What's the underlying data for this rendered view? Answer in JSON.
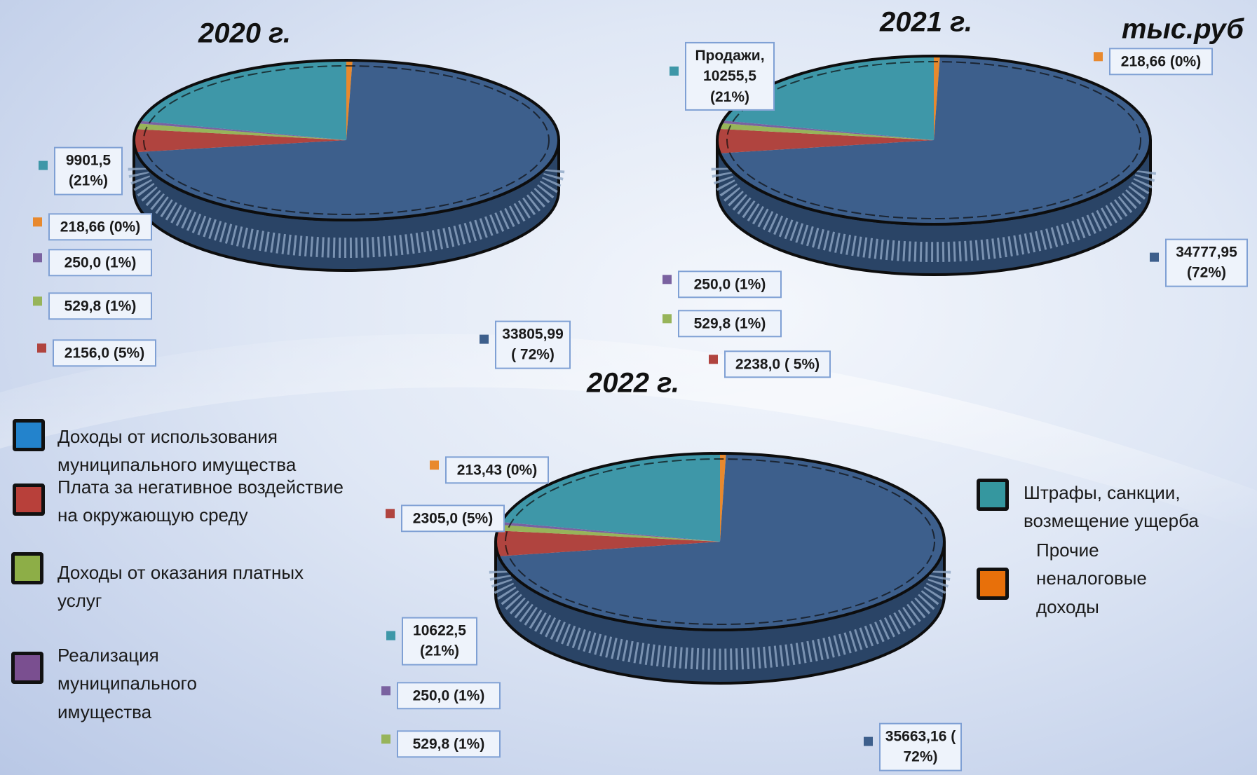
{
  "unit": "тыс.руб",
  "legend": [
    {
      "name": "Доходы от использования муниципального имущества",
      "color": "#2383cc"
    },
    {
      "name": "Плата за негативное воздействие на окружающую среду",
      "color": "#b8403a"
    },
    {
      "name": "Доходы от оказания платных услуг",
      "color": "#8dae47"
    },
    {
      "name": "Реализация муниципального имущества",
      "color": "#7a4f90"
    },
    {
      "name": "Штрафы, санкции, возмещение ущерба",
      "color": "#35979f"
    },
    {
      "name": "Прочие неналоговые доходы",
      "color": "#e8700a"
    }
  ],
  "chart_data": [
    {
      "type": "pie",
      "title": "2020 г.",
      "values": [
        33805.99,
        2156.0,
        529.8,
        250.0,
        9901.5,
        218.66
      ],
      "value_labels": [
        "33805,99 ( 72%)",
        "2156,0 (5%)",
        "529,8 (1%)",
        "250,0 (1%)",
        "9901,5 (21%)",
        "218,66 (0%)"
      ],
      "colors": [
        "#3d5f8c",
        "#b0443f",
        "#97b45a",
        "#7a62a0",
        "#3e97a8",
        "#e8892e"
      ]
    },
    {
      "type": "pie",
      "title": "2021 г.",
      "values": [
        34777.95,
        2238.0,
        529.8,
        250.0,
        10255.5,
        218.66
      ],
      "value_labels": [
        "34777,95 (72%)",
        "2238,0 ( 5%)",
        "529,8 (1%)",
        "250,0 (1%)",
        "Продажи, 10255,5 (21%)",
        "218,66 (0%)"
      ],
      "colors": [
        "#3d5f8c",
        "#b0443f",
        "#97b45a",
        "#7a62a0",
        "#3e97a8",
        "#e8892e"
      ]
    },
    {
      "type": "pie",
      "title": "2022 г.",
      "values": [
        35663.16,
        2305.0,
        529.8,
        250.0,
        10622.5,
        213.43
      ],
      "value_labels": [
        "35663,16 ( 72%)",
        "2305,0 (5%)",
        "529,8 (1%)",
        "250,0 (1%)",
        "10622,5 (21%)",
        "213,43 (0%)"
      ],
      "colors": [
        "#3d5f8c",
        "#b0443f",
        "#97b45a",
        "#7a62a0",
        "#3e97a8",
        "#e8892e"
      ]
    }
  ]
}
